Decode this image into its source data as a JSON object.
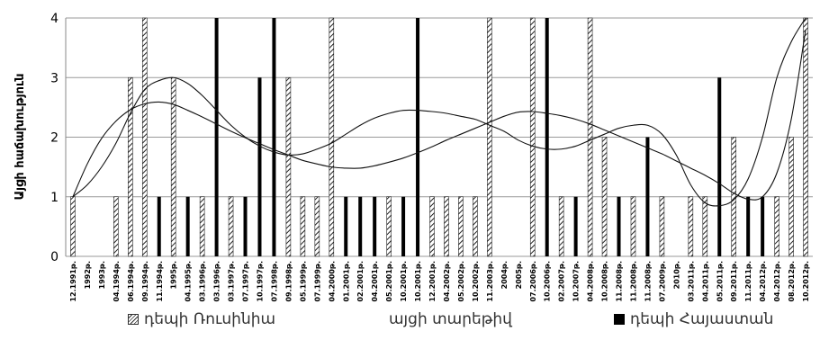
{
  "chart_data": {
    "type": "bar",
    "title": "",
    "xlabel": "",
    "ylabel": "Այցի հաճախություն",
    "ylim": [
      0,
      4
    ],
    "yticks": [
      0,
      1,
      2,
      3,
      4
    ],
    "grid": true,
    "legend_position": "bottom",
    "categories": [
      "12.1991թ.",
      "1992թ.",
      "1993թ.",
      "04.1994թ.",
      "06.1994թ.",
      "09.1994թ.",
      "11.1994թ.",
      "1995թ.",
      "04.1995թ.",
      "03.1996թ.",
      "03.1996թ.",
      "03.1997թ.",
      "07.1997թ.",
      "10.1997թ.",
      "07.1998թ.",
      "09.1998թ.",
      "05.1999թ.",
      "07.1999թ.",
      "04.2000թ.",
      "01.2001թ.",
      "02.2001թ.",
      "04.2001թ.",
      "05.2001թ.",
      "10.2001թ.",
      "10.2001թ.",
      "12.2001թ.",
      "04.2002թ.",
      "05.2002թ.",
      "10.2002թ.",
      "11.2003թ.",
      "2004թ.",
      "2005թ.",
      "07.2006թ.",
      "10.2006թ.",
      "02.2007թ.",
      "10.2007թ.",
      "04.2008թ.",
      "10.2008թ.",
      "11.2008թ.",
      "11.2008թ.",
      "11.2008թ.",
      "07.2009թ.",
      "2010թ.",
      "03.2011թ.",
      "04.2011թ.",
      "05.2011թ.",
      "09.2011թ.",
      "11.2011թ.",
      "04.2012թ.",
      "04.2012թ.",
      "08.2012թ.",
      "10.2012թ."
    ],
    "series": [
      {
        "name": "դեպի Ռուսինիա",
        "pattern": "hatched",
        "color": "#333333",
        "values": [
          1,
          0,
          0,
          1,
          3,
          4,
          0,
          3,
          0,
          1,
          0,
          1,
          0,
          0,
          0,
          3,
          1,
          1,
          4,
          0,
          0,
          0,
          1,
          0,
          0,
          1,
          1,
          1,
          1,
          4,
          0,
          0,
          4,
          0,
          1,
          0,
          4,
          2,
          0,
          1,
          0,
          1,
          0,
          1,
          1,
          0,
          2,
          0,
          0,
          1,
          2,
          4
        ]
      },
      {
        "name": "դեպի Հայաստան",
        "color": "#000000",
        "values": [
          0,
          0,
          0,
          0,
          0,
          0,
          1,
          0,
          1,
          0,
          4,
          0,
          1,
          3,
          4,
          0,
          0,
          0,
          0,
          1,
          1,
          1,
          0,
          1,
          4,
          0,
          0,
          0,
          0,
          0,
          0,
          0,
          0,
          4,
          0,
          1,
          0,
          0,
          1,
          0,
          2,
          0,
          0,
          0,
          0,
          3,
          0,
          1,
          1,
          0,
          0,
          0
        ]
      }
    ],
    "trendlines": [
      {
        "label": "այցի տարեթիվ",
        "type": "polynomial",
        "values": [
          1.0,
          1.55,
          1.98,
          2.27,
          2.46,
          2.56,
          2.59,
          2.55,
          2.45,
          2.34,
          2.22,
          2.1,
          1.99,
          1.89,
          1.79,
          1.7,
          1.61,
          1.55,
          1.5,
          1.48,
          1.48,
          1.52,
          1.58,
          1.65,
          1.74,
          1.84,
          1.95,
          2.05,
          2.15,
          2.25,
          2.35,
          2.42,
          2.43,
          2.4,
          2.36,
          2.3,
          2.22,
          2.12,
          2.02,
          1.92,
          1.82,
          1.72,
          1.6,
          1.48,
          1.36,
          1.22,
          1.06,
          0.96,
          1.0,
          1.4,
          2.3,
          3.8
        ]
      },
      {
        "type": "polynomial",
        "values": [
          1.0,
          1.2,
          1.5,
          1.9,
          2.4,
          2.8,
          2.95,
          3.0,
          2.9,
          2.7,
          2.45,
          2.2,
          2.0,
          1.85,
          1.75,
          1.7,
          1.72,
          1.8,
          1.9,
          2.05,
          2.2,
          2.32,
          2.4,
          2.45,
          2.45,
          2.43,
          2.4,
          2.35,
          2.3,
          2.2,
          2.1,
          1.95,
          1.85,
          1.8,
          1.8,
          1.85,
          1.95,
          2.05,
          2.15,
          2.2,
          2.2,
          2.05,
          1.7,
          1.2,
          0.9,
          0.85,
          0.95,
          1.3,
          2.0,
          3.0,
          3.6,
          4.0
        ]
      }
    ],
    "legend": [
      "դեպի Ռուսինիա",
      "այցի տարեթիվ",
      "դեպի Հայաստան"
    ]
  }
}
